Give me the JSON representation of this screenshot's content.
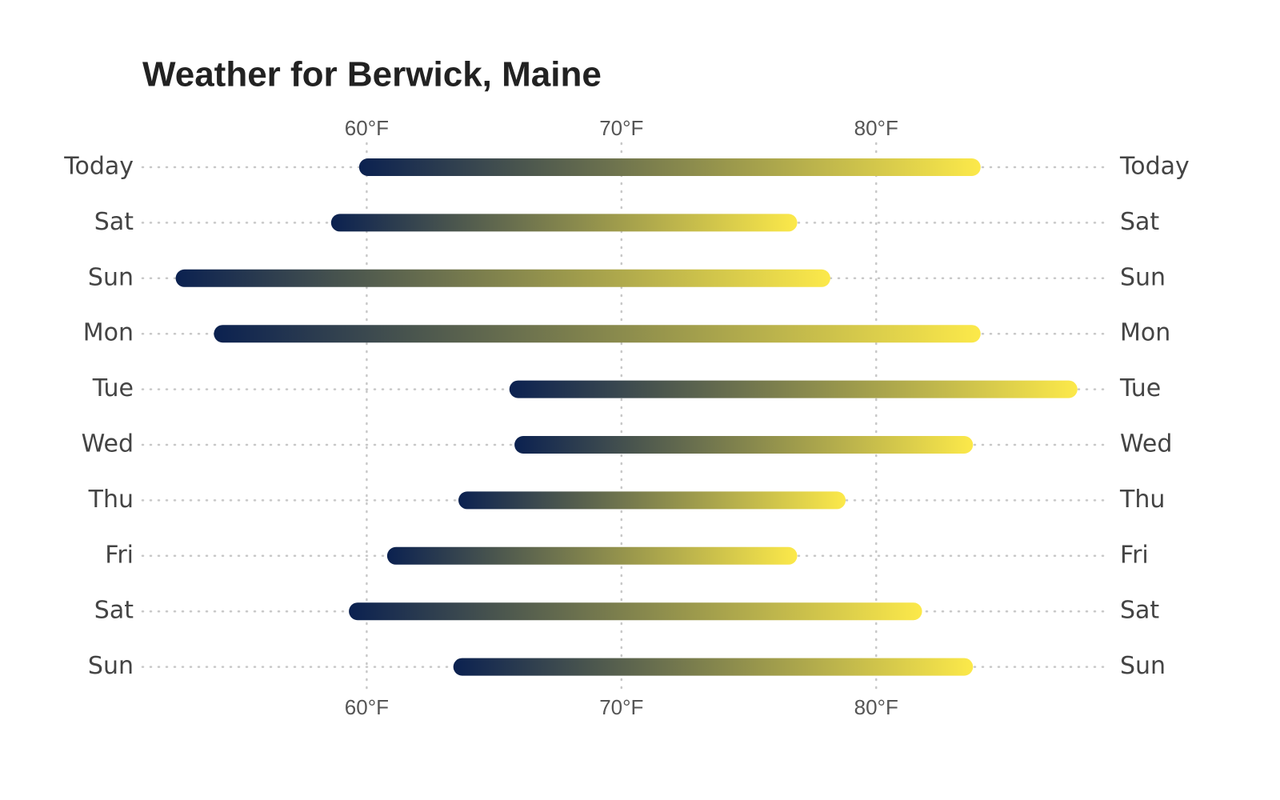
{
  "chart_data": {
    "type": "range",
    "title": "Weather for Berwick, Maine",
    "categories": [
      "Today",
      "Sat",
      "Sun",
      "Mon",
      "Tue",
      "Wed",
      "Thu",
      "Fri",
      "Sat",
      "Sun"
    ],
    "low": [
      59.7,
      58.6,
      52.5,
      54.0,
      65.6,
      65.8,
      63.6,
      60.8,
      59.3,
      63.4
    ],
    "high": [
      84.1,
      76.9,
      78.2,
      84.1,
      87.9,
      83.8,
      78.8,
      76.9,
      81.8,
      83.8
    ],
    "colors": [
      "#0b2150",
      "#fce94a"
    ],
    "xlim": [
      51.1,
      89.1
    ],
    "xticks": [
      {
        "value": 60,
        "label": "60°F"
      },
      {
        "value": 70,
        "label": "70°F"
      },
      {
        "value": 80,
        "label": "80°F"
      }
    ],
    "grid": true
  }
}
